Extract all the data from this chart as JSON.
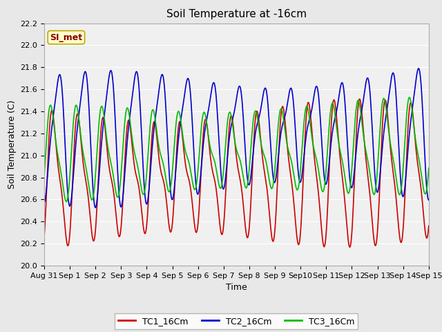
{
  "title": "Soil Temperature at -16cm",
  "xlabel": "Time",
  "ylabel": "Soil Temperature (C)",
  "ylim": [
    20.0,
    22.2
  ],
  "bg_color": "#e8e8e8",
  "plot_bg_color": "#f0f0f0",
  "grid_color": "white",
  "tc1_color": "#cc0000",
  "tc2_color": "#0000cc",
  "tc3_color": "#00bb00",
  "lw": 1.2,
  "legend_box_color": "#ffffcc",
  "legend_box_edge": "#bbaa00",
  "annotation_text": "SI_met",
  "annotation_color": "#880000",
  "annotation_bg": "#ffffcc",
  "annotation_edge": "#bbaa00",
  "title_fontsize": 11,
  "label_fontsize": 9,
  "tick_fontsize": 8,
  "legend_fontsize": 9,
  "tick_labels": [
    "Aug 31",
    "Sep 1",
    "Sep 2",
    "Sep 3",
    "Sep 4",
    "Sep 5",
    "Sep 6",
    "Sep 7",
    "Sep 8",
    "Sep 9",
    "Sep10",
    "Sep 11",
    "Sep 12",
    "Sep 13",
    "Sep 14",
    "Sep 15"
  ]
}
